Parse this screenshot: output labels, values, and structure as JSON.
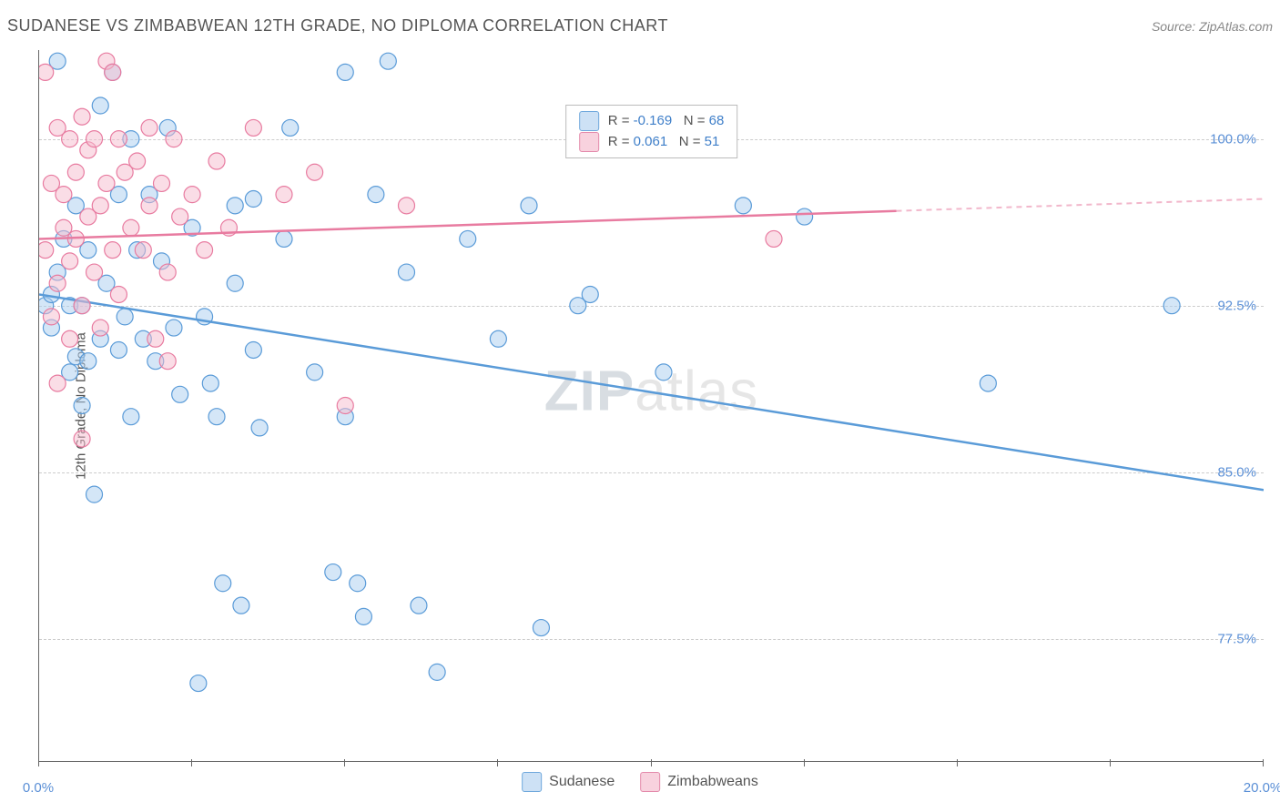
{
  "title": "SUDANESE VS ZIMBABWEAN 12TH GRADE, NO DIPLOMA CORRELATION CHART",
  "source": "Source: ZipAtlas.com",
  "y_axis_label": "12th Grade, No Diploma",
  "watermark_bold": "ZIP",
  "watermark_light": "atlas",
  "chart": {
    "type": "scatter",
    "xlim": [
      0,
      20
    ],
    "ylim": [
      72,
      104
    ],
    "x_ticks": [
      0,
      2.5,
      5,
      7.5,
      10,
      12.5,
      15,
      17.5,
      20
    ],
    "x_tick_labels": {
      "0": "0.0%",
      "20": "20.0%"
    },
    "y_ticks": [
      77.5,
      85.0,
      92.5,
      100.0
    ],
    "y_tick_labels": [
      "77.5%",
      "85.0%",
      "92.5%",
      "100.0%"
    ],
    "background_color": "#ffffff",
    "gridline_color": "#cccccc",
    "marker_radius": 9,
    "marker_opacity": 0.5,
    "series": [
      {
        "name": "Sudanese",
        "color_fill": "#a9cdf0",
        "color_stroke": "#5a9bd8",
        "swatch_fill": "#cde1f5",
        "swatch_stroke": "#6fa8dc",
        "stats": {
          "R_label": "R =",
          "R": "-0.169",
          "N_label": "N =",
          "N": "68"
        },
        "regression": {
          "x1": 0,
          "y1": 93.0,
          "x2": 20,
          "y2": 84.2,
          "dashed_from_x": null
        },
        "points": [
          [
            0.1,
            92.5
          ],
          [
            0.2,
            93.0
          ],
          [
            0.2,
            91.5
          ],
          [
            0.3,
            103.5
          ],
          [
            0.3,
            94.0
          ],
          [
            0.4,
            95.5
          ],
          [
            0.5,
            89.5
          ],
          [
            0.5,
            92.5
          ],
          [
            0.6,
            97.0
          ],
          [
            0.6,
            90.2
          ],
          [
            0.7,
            88.0
          ],
          [
            0.7,
            92.5
          ],
          [
            0.8,
            90.0
          ],
          [
            0.8,
            95.0
          ],
          [
            0.9,
            84.0
          ],
          [
            1.0,
            101.5
          ],
          [
            1.0,
            91.0
          ],
          [
            1.1,
            93.5
          ],
          [
            1.2,
            103.0
          ],
          [
            1.3,
            97.5
          ],
          [
            1.3,
            90.5
          ],
          [
            1.4,
            92.0
          ],
          [
            1.5,
            100.0
          ],
          [
            1.5,
            87.5
          ],
          [
            1.6,
            95.0
          ],
          [
            1.7,
            91.0
          ],
          [
            1.8,
            97.5
          ],
          [
            1.9,
            90.0
          ],
          [
            2.0,
            94.5
          ],
          [
            2.1,
            100.5
          ],
          [
            2.2,
            91.5
          ],
          [
            2.3,
            88.5
          ],
          [
            2.5,
            96.0
          ],
          [
            2.6,
            75.5
          ],
          [
            2.7,
            92.0
          ],
          [
            2.8,
            89.0
          ],
          [
            2.9,
            87.5
          ],
          [
            3.0,
            80.0
          ],
          [
            3.2,
            93.5
          ],
          [
            3.2,
            97.0
          ],
          [
            3.3,
            79.0
          ],
          [
            3.5,
            90.5
          ],
          [
            3.5,
            97.3
          ],
          [
            3.6,
            87.0
          ],
          [
            4.0,
            95.5
          ],
          [
            4.1,
            100.5
          ],
          [
            4.5,
            89.5
          ],
          [
            4.8,
            80.5
          ],
          [
            5.0,
            103.0
          ],
          [
            5.0,
            87.5
          ],
          [
            5.2,
            80.0
          ],
          [
            5.3,
            78.5
          ],
          [
            5.5,
            97.5
          ],
          [
            5.7,
            103.5
          ],
          [
            6.0,
            94.0
          ],
          [
            6.2,
            79.0
          ],
          [
            6.5,
            76.0
          ],
          [
            7.0,
            95.5
          ],
          [
            7.5,
            91.0
          ],
          [
            8.0,
            97.0
          ],
          [
            8.2,
            78.0
          ],
          [
            9.0,
            93.0
          ],
          [
            10.2,
            89.5
          ],
          [
            11.5,
            97.0
          ],
          [
            12.5,
            96.5
          ],
          [
            15.5,
            89.0
          ],
          [
            18.5,
            92.5
          ],
          [
            8.8,
            92.5
          ]
        ]
      },
      {
        "name": "Zimbabweans",
        "color_fill": "#f5bccd",
        "color_stroke": "#e87ba0",
        "swatch_fill": "#f8d2de",
        "swatch_stroke": "#e48aab",
        "stats": {
          "R_label": "R =",
          "R": "0.061",
          "N_label": "N =",
          "N": "51"
        },
        "regression": {
          "x1": 0,
          "y1": 95.5,
          "x2": 20,
          "y2": 97.3,
          "dashed_from_x": 14
        },
        "points": [
          [
            0.1,
            95.0
          ],
          [
            0.1,
            103.0
          ],
          [
            0.2,
            98.0
          ],
          [
            0.2,
            92.0
          ],
          [
            0.3,
            93.5
          ],
          [
            0.3,
            100.5
          ],
          [
            0.3,
            89.0
          ],
          [
            0.4,
            96.0
          ],
          [
            0.4,
            97.5
          ],
          [
            0.5,
            100.0
          ],
          [
            0.5,
            94.5
          ],
          [
            0.5,
            91.0
          ],
          [
            0.6,
            98.5
          ],
          [
            0.6,
            95.5
          ],
          [
            0.7,
            101.0
          ],
          [
            0.7,
            86.5
          ],
          [
            0.7,
            92.5
          ],
          [
            0.8,
            99.5
          ],
          [
            0.8,
            96.5
          ],
          [
            0.9,
            94.0
          ],
          [
            0.9,
            100.0
          ],
          [
            1.0,
            97.0
          ],
          [
            1.0,
            91.5
          ],
          [
            1.1,
            103.5
          ],
          [
            1.1,
            98.0
          ],
          [
            1.2,
            95.0
          ],
          [
            1.3,
            100.0
          ],
          [
            1.3,
            93.0
          ],
          [
            1.4,
            98.5
          ],
          [
            1.5,
            96.0
          ],
          [
            1.6,
            99.0
          ],
          [
            1.7,
            95.0
          ],
          [
            1.8,
            100.5
          ],
          [
            1.8,
            97.0
          ],
          [
            1.9,
            91.0
          ],
          [
            2.0,
            98.0
          ],
          [
            2.1,
            94.0
          ],
          [
            2.1,
            90.0
          ],
          [
            2.2,
            100.0
          ],
          [
            2.3,
            96.5
          ],
          [
            2.5,
            97.5
          ],
          [
            2.7,
            95.0
          ],
          [
            2.9,
            99.0
          ],
          [
            3.1,
            96.0
          ],
          [
            3.5,
            100.5
          ],
          [
            4.0,
            97.5
          ],
          [
            4.5,
            98.5
          ],
          [
            5.0,
            88.0
          ],
          [
            6.0,
            97.0
          ],
          [
            12.0,
            95.5
          ],
          [
            1.2,
            103.0
          ]
        ]
      }
    ]
  },
  "colors": {
    "title_text": "#555555",
    "source_text": "#888888",
    "axis_line": "#666666",
    "tick_label_blue": "#5a8fd6",
    "stat_text": "#555555",
    "stat_value": "#3f7fc9"
  },
  "legend_bottom": [
    {
      "label": "Sudanese",
      "fill": "#cde1f5",
      "stroke": "#6fa8dc"
    },
    {
      "label": "Zimbabweans",
      "fill": "#f8d2de",
      "stroke": "#e48aab"
    }
  ]
}
